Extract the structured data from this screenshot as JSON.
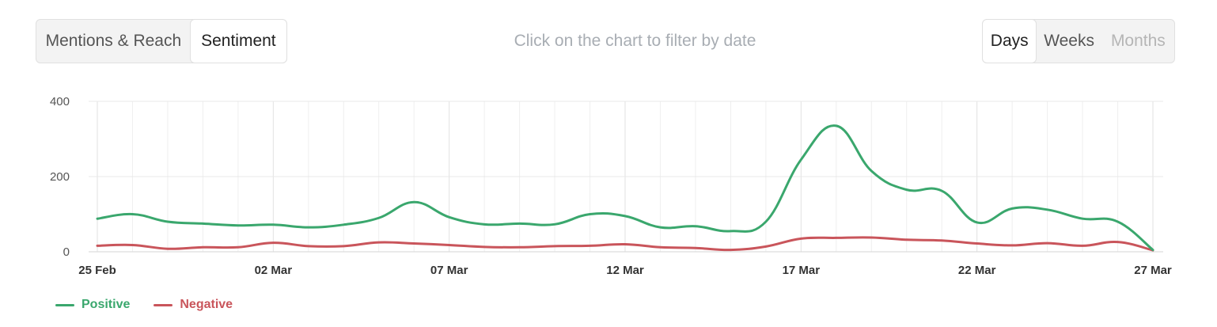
{
  "toolbar": {
    "view_tabs": [
      "Mentions & Reach",
      "Sentiment"
    ],
    "active_view": "Sentiment",
    "hint": "Click on the chart to filter by date",
    "period_tabs": [
      "Days",
      "Weeks",
      "Months"
    ],
    "active_period": "Days",
    "disabled_period": "Months"
  },
  "chart_data": {
    "type": "line",
    "x": [
      "25 Feb",
      "26 Feb",
      "27 Feb",
      "28 Feb",
      "01 Mar",
      "02 Mar",
      "03 Mar",
      "04 Mar",
      "05 Mar",
      "06 Mar",
      "07 Mar",
      "08 Mar",
      "09 Mar",
      "10 Mar",
      "11 Mar",
      "12 Mar",
      "13 Mar",
      "14 Mar",
      "15 Mar",
      "16 Mar",
      "17 Mar",
      "18 Mar",
      "19 Mar",
      "20 Mar",
      "21 Mar",
      "22 Mar",
      "23 Mar",
      "24 Mar",
      "25 Mar",
      "26 Mar",
      "27 Mar"
    ],
    "xticks": [
      "25 Feb",
      "02 Mar",
      "07 Mar",
      "12 Mar",
      "17 Mar",
      "22 Mar",
      "27 Mar"
    ],
    "yticks": [
      0,
      200,
      400
    ],
    "ylim": [
      0,
      400
    ],
    "grid": true,
    "legend_position": "bottom-left",
    "series": [
      {
        "name": "Positive",
        "color": "#3aa76d",
        "values": [
          88,
          100,
          80,
          75,
          70,
          72,
          65,
          72,
          90,
          132,
          92,
          73,
          75,
          73,
          100,
          95,
          65,
          68,
          55,
          80,
          245,
          335,
          215,
          165,
          162,
          78,
          115,
          112,
          88,
          80,
          5
        ]
      },
      {
        "name": "Negative",
        "color": "#c9555b",
        "values": [
          16,
          18,
          8,
          12,
          12,
          24,
          15,
          15,
          25,
          22,
          18,
          13,
          12,
          15,
          16,
          20,
          12,
          10,
          5,
          14,
          35,
          37,
          38,
          32,
          30,
          22,
          17,
          23,
          16,
          26,
          4
        ]
      }
    ]
  }
}
